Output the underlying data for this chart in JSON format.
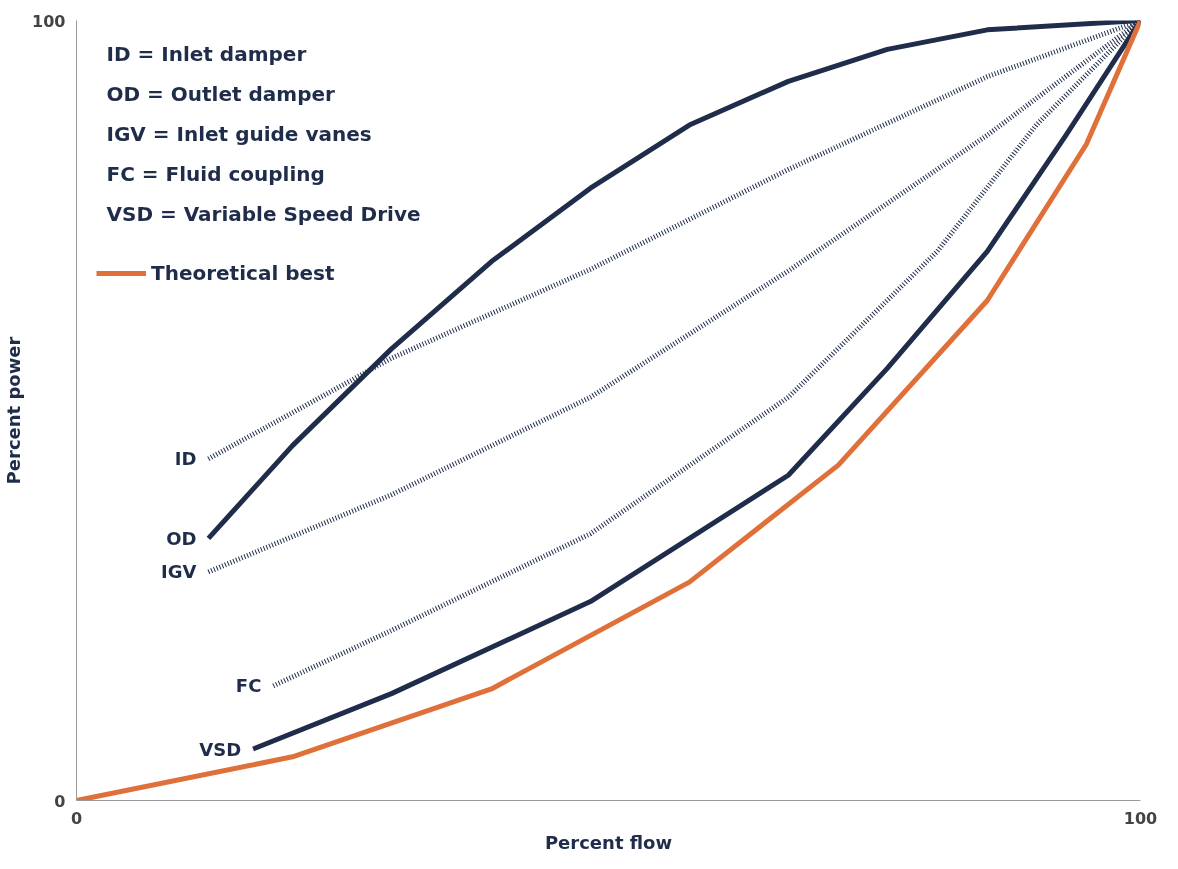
{
  "chart_data": {
    "type": "line",
    "xlabel": "Percent flow",
    "ylabel": "Percent power",
    "xlim": [
      0,
      100
    ],
    "ylim": [
      0,
      100
    ],
    "xticks": [
      0,
      100
    ],
    "yticks": [
      0,
      100
    ],
    "legend": "top left",
    "marker": "none",
    "annotations": [
      "ID = Inlet damper",
      "OD = Outlet damper",
      "IGV = Inlet guide vanes",
      "FC = Fluid coupling",
      "VSD = Variable Speed Drive"
    ],
    "series": [
      {
        "name": "ID",
        "color": "#1f2d4a",
        "line_style": "dotted",
        "x": [
          12.4,
          29.6,
          48.3,
          66.9,
          85.6,
          100
        ],
        "values": [
          43.8,
          56.7,
          68.1,
          80.9,
          92.8,
          100
        ]
      },
      {
        "name": "OD",
        "color": "#1f2d4a",
        "line_style": "solid",
        "x": [
          12.4,
          20.3,
          29.6,
          39.0,
          48.3,
          57.6,
          66.9,
          76.2,
          85.6,
          100
        ],
        "values": [
          33.6,
          45.5,
          57.9,
          69.1,
          78.5,
          86.6,
          92.2,
          96.3,
          98.8,
          100
        ]
      },
      {
        "name": "IGV",
        "color": "#1f2d4a",
        "line_style": "dotted",
        "x": [
          12.4,
          29.6,
          48.3,
          66.9,
          85.6,
          100
        ],
        "values": [
          29.3,
          39.2,
          51.7,
          67.9,
          85.3,
          100
        ]
      },
      {
        "name": "FC",
        "color": "#1f2d4a",
        "line_style": "dotted",
        "x": [
          18.5,
          29.6,
          48.3,
          66.9,
          80.9,
          90.2,
          100
        ],
        "values": [
          14.7,
          21.8,
          34.2,
          51.7,
          70.4,
          86.6,
          100
        ]
      },
      {
        "name": "VSD",
        "color": "#1f2d4a",
        "line_style": "solid",
        "x": [
          16.6,
          29.6,
          48.3,
          66.9,
          76.2,
          85.6,
          93.0,
          100
        ],
        "values": [
          6.6,
          13.7,
          25.5,
          41.7,
          55.4,
          70.4,
          85.3,
          100
        ]
      },
      {
        "name": "Theoretical best",
        "color": "#e0703a",
        "line_style": "solid",
        "x": [
          0,
          20.3,
          39.0,
          57.6,
          71.6,
          85.6,
          94.9,
          100
        ],
        "values": [
          0,
          5.6,
          14.3,
          28.0,
          43.0,
          64.1,
          84.1,
          100
        ]
      }
    ]
  }
}
